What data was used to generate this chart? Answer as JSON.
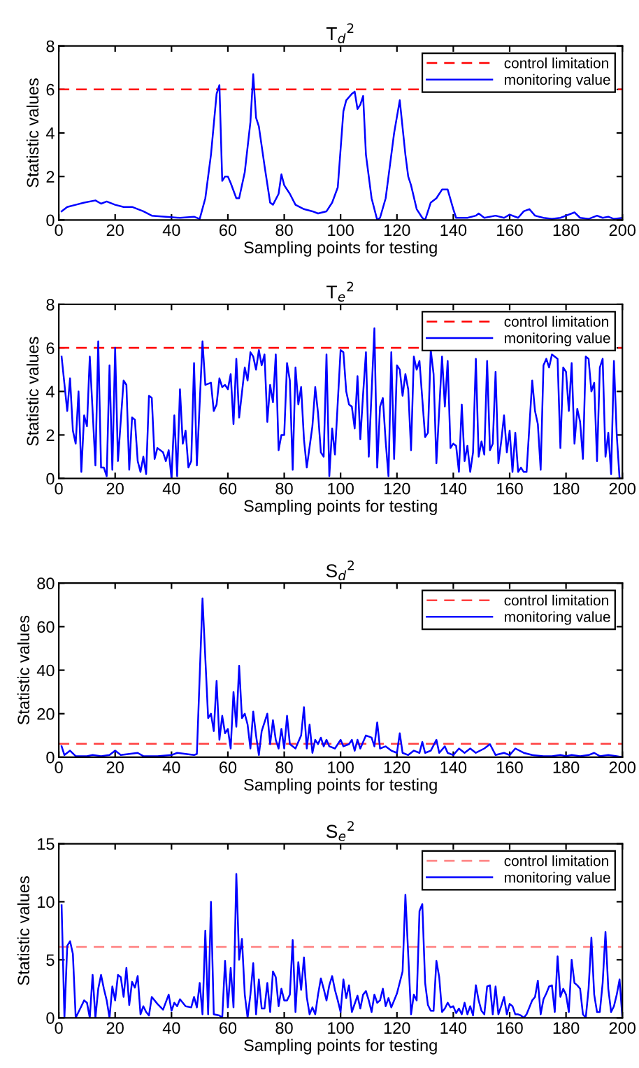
{
  "chart_data": [
    {
      "type": "line",
      "title": "T$_{d}$$^{2}$",
      "xlabel": "Sampling points for testing",
      "ylabel": "Statistic values",
      "xlim": [
        0,
        200
      ],
      "xticks": [
        0,
        20,
        40,
        60,
        80,
        100,
        120,
        140,
        160,
        180,
        200
      ],
      "ylim": [
        0,
        8
      ],
      "yticks": [
        0,
        2,
        4,
        6,
        8
      ],
      "grid": false,
      "legend": "top right",
      "ref_lines": [
        {
          "axis": "y",
          "value": 6,
          "label": "control limitation",
          "color": "#ff0000",
          "line_style": "dashed"
        }
      ],
      "series": [
        {
          "name": "monitoring value",
          "color": "#0000ff",
          "x": [
            1,
            3,
            6,
            9,
            13,
            15,
            17,
            20,
            23,
            26,
            30,
            33,
            38,
            43,
            48,
            50,
            52,
            54,
            56,
            57,
            58,
            59,
            60,
            61,
            63,
            64,
            66,
            68,
            69,
            70,
            71,
            73,
            75,
            76,
            78,
            79,
            80,
            82,
            84,
            87,
            90,
            92,
            95,
            97,
            99,
            101,
            102,
            104,
            105,
            106,
            107,
            108,
            109,
            111,
            113,
            114,
            116,
            119,
            121,
            123,
            124,
            125,
            127,
            129,
            130,
            132,
            134,
            136,
            138,
            140,
            141,
            145,
            148,
            149,
            151,
            155,
            158,
            160,
            163,
            165,
            167,
            169,
            172,
            175,
            178,
            180,
            183,
            185,
            188,
            191,
            193,
            195,
            197,
            200
          ],
          "values": [
            0.4,
            0.6,
            0.7,
            0.8,
            0.9,
            0.75,
            0.85,
            0.7,
            0.6,
            0.6,
            0.4,
            0.2,
            0.15,
            0.1,
            0.15,
            0.05,
            1.0,
            3.0,
            5.8,
            6.2,
            1.8,
            2.0,
            2.0,
            1.7,
            1.0,
            1.0,
            2.2,
            4.5,
            6.7,
            4.7,
            4.3,
            2.5,
            0.8,
            0.7,
            1.2,
            2.1,
            1.6,
            1.2,
            0.7,
            0.5,
            0.4,
            0.3,
            0.4,
            0.8,
            1.5,
            5.0,
            5.5,
            5.8,
            5.9,
            5.1,
            5.3,
            5.7,
            3.0,
            1.0,
            0.0,
            0.1,
            1.0,
            4.0,
            5.5,
            3.0,
            2.0,
            1.6,
            0.5,
            0.1,
            0.0,
            0.8,
            1.0,
            1.4,
            1.4,
            0.5,
            0.1,
            0.1,
            0.2,
            0.3,
            0.1,
            0.2,
            0.1,
            0.25,
            0.1,
            0.4,
            0.5,
            0.2,
            0.1,
            0.05,
            0.1,
            0.2,
            0.35,
            0.1,
            0.05,
            0.2,
            0.1,
            0.15,
            0.05,
            0.1
          ]
        }
      ]
    },
    {
      "type": "line",
      "title": "T$_{e}$$^{2}$",
      "xlabel": "Sampling points for testing",
      "ylabel": "Statistic values",
      "xlim": [
        0,
        200
      ],
      "xticks": [
        0,
        20,
        40,
        60,
        80,
        100,
        120,
        140,
        160,
        180,
        200
      ],
      "ylim": [
        0,
        8
      ],
      "yticks": [
        0,
        2,
        4,
        6,
        8
      ],
      "grid": false,
      "legend": "top right",
      "ref_lines": [
        {
          "axis": "y",
          "value": 6,
          "label": "control limitation",
          "color": "#ff0000",
          "line_style": "dashed"
        }
      ],
      "series": [
        {
          "name": "monitoring value",
          "color": "#0000ff",
          "x": [
            1,
            3,
            4,
            5,
            6,
            7,
            8,
            9,
            10,
            11,
            13,
            14,
            15,
            16,
            17,
            18,
            19,
            20,
            21,
            23,
            24,
            25,
            26,
            27,
            28,
            29,
            30,
            31,
            32,
            33,
            34,
            35,
            37,
            38,
            39,
            40,
            41,
            42,
            43,
            44,
            45,
            46,
            47,
            48,
            49,
            51,
            52,
            54,
            55,
            56,
            57,
            58,
            59,
            60,
            61,
            62,
            63,
            64,
            66,
            67,
            68,
            69,
            70,
            71,
            72,
            73,
            74,
            75,
            76,
            77,
            78,
            79,
            80,
            81,
            82,
            83,
            84,
            85,
            86,
            87,
            88,
            90,
            91,
            92,
            93,
            94,
            95,
            96,
            97,
            98,
            100,
            101,
            102,
            103,
            104,
            105,
            106,
            107,
            108,
            109,
            110,
            112,
            113,
            114,
            115,
            116,
            117,
            118,
            119,
            120,
            121,
            122,
            123,
            124,
            125,
            126,
            127,
            128,
            130,
            131,
            132,
            133,
            134,
            136,
            137,
            138,
            139,
            140,
            141,
            142,
            143,
            144,
            145,
            146,
            147,
            148,
            149,
            150,
            151,
            152,
            153,
            154,
            155,
            156,
            157,
            158,
            159,
            160,
            161,
            162,
            163,
            164,
            165,
            166,
            168,
            169,
            170,
            171,
            172,
            173,
            174,
            175,
            177,
            178,
            179,
            180,
            181,
            182,
            183,
            184,
            185,
            186,
            187,
            188,
            189,
            190,
            191,
            192,
            193,
            194,
            195,
            196,
            197,
            198,
            199
          ],
          "values": [
            5.6,
            3.1,
            4.6,
            2.2,
            1.6,
            4.0,
            0.3,
            2.9,
            2.4,
            5.6,
            0.6,
            6.3,
            0.5,
            0.5,
            0.1,
            5.2,
            0.4,
            6.0,
            0.8,
            4.5,
            4.3,
            0.4,
            2.8,
            2.7,
            0.8,
            0.3,
            1.0,
            0.2,
            3.8,
            3.7,
            0.9,
            1.4,
            1.2,
            0.8,
            1.3,
            0.0,
            2.9,
            0.1,
            4.1,
            1.6,
            2.2,
            0.5,
            0.8,
            5.3,
            0.6,
            6.3,
            4.3,
            4.4,
            3.1,
            3.4,
            4.6,
            4.2,
            4.3,
            4.1,
            4.8,
            2.5,
            5.5,
            2.8,
            5.1,
            4.5,
            5.8,
            5.6,
            5.0,
            5.9,
            5.2,
            5.7,
            2.6,
            4.3,
            3.5,
            5.7,
            1.3,
            2.0,
            2.0,
            5.3,
            4.5,
            0.4,
            5.1,
            3.4,
            4.2,
            1.8,
            0.5,
            2.4,
            4.2,
            3.0,
            1.2,
            1.0,
            5.7,
            0.1,
            2.3,
            1.1,
            5.9,
            5.8,
            4.0,
            3.4,
            3.3,
            2.3,
            4.7,
            1.8,
            3.9,
            5.8,
            1.0,
            6.9,
            0.5,
            3.3,
            3.7,
            1.7,
            0.1,
            5.8,
            0.9,
            5.2,
            5.0,
            3.8,
            4.8,
            4.1,
            1.3,
            5.6,
            5.0,
            5.4,
            1.9,
            2.1,
            5.9,
            4.8,
            0.7,
            5.6,
            3.3,
            5.4,
            1.4,
            1.6,
            1.5,
            0.3,
            3.4,
            0.8,
            1.5,
            0.3,
            1.2,
            5.5,
            1.0,
            1.7,
            1.1,
            5.4,
            1.3,
            1.6,
            4.9,
            0.7,
            1.7,
            2.9,
            1.2,
            2.2,
            0.3,
            2.1,
            0.3,
            0.5,
            0.3,
            0.3,
            4.5,
            3.1,
            2.5,
            0.4,
            5.2,
            5.5,
            5.1,
            5.7,
            5.5,
            1.4,
            5.1,
            4.9,
            3.1,
            5.3,
            1.6,
            3.2,
            2.6,
            0.9,
            5.6,
            5.5,
            4.0,
            4.4,
            0.8,
            5.1,
            5.5,
            1.0,
            2.1,
            0.2,
            5.4,
            2.0,
            0.0
          ]
        }
      ]
    },
    {
      "type": "line",
      "title": "S$_{d}$$^{2}$",
      "xlabel": "Sampling points for testing",
      "ylabel": "Statistic values",
      "xlim": [
        0,
        200
      ],
      "xticks": [
        0,
        20,
        40,
        60,
        80,
        100,
        120,
        140,
        160,
        180,
        200
      ],
      "ylim": [
        0,
        80
      ],
      "yticks": [
        0,
        20,
        40,
        60,
        80
      ],
      "grid": false,
      "legend": "top right",
      "ref_lines": [
        {
          "axis": "y",
          "value": 6.2,
          "label": "control limitation",
          "color": "#ff4040",
          "line_style": "dashed"
        }
      ],
      "series": [
        {
          "name": "monitoring value",
          "color": "#0000ff",
          "x": [
            1,
            2,
            4,
            6,
            10,
            12,
            15,
            18,
            20,
            22,
            25,
            28,
            30,
            35,
            40,
            42,
            45,
            48,
            49,
            51,
            53,
            54,
            55,
            56,
            57,
            58,
            59,
            60,
            61,
            62,
            63,
            64,
            65,
            66,
            67,
            68,
            69,
            70,
            71,
            72,
            74,
            75,
            76,
            77,
            78,
            79,
            80,
            81,
            82,
            84,
            86,
            87,
            88,
            89,
            90,
            91,
            92,
            93,
            94,
            95,
            96,
            98,
            100,
            101,
            103,
            104,
            105,
            106,
            107,
            109,
            111,
            112,
            113,
            114,
            116,
            118,
            120,
            121,
            122,
            124,
            126,
            128,
            129,
            130,
            132,
            134,
            135,
            137,
            138,
            140,
            142,
            144,
            146,
            148,
            151,
            153,
            155,
            158,
            160,
            162,
            165,
            168,
            172,
            175,
            178,
            180,
            182,
            185,
            188,
            190,
            192,
            195,
            198,
            200
          ],
          "values": [
            5,
            1,
            3,
            0.5,
            0.5,
            1,
            0.5,
            1,
            3,
            1,
            1.5,
            2,
            0.5,
            0.5,
            1,
            2,
            1.5,
            1,
            1.5,
            73,
            18,
            20,
            12,
            35,
            8,
            19,
            11,
            13,
            4,
            30,
            14,
            42,
            18,
            20,
            15,
            4,
            21,
            10,
            1,
            12,
            20,
            6,
            17,
            8,
            4,
            13,
            4,
            19,
            6,
            4,
            10,
            23,
            4,
            15,
            2,
            8,
            6,
            9,
            5,
            8,
            5,
            4,
            8,
            5,
            6,
            8,
            3,
            8,
            4,
            10,
            9,
            5,
            16,
            4,
            5,
            3,
            2,
            11,
            2,
            1,
            3,
            2,
            7,
            2,
            3,
            8,
            2,
            5,
            2,
            1,
            4,
            2,
            4,
            2,
            4,
            6,
            1,
            2,
            1,
            4,
            2,
            1,
            0.5,
            0.5,
            1,
            0.5,
            1,
            0.5,
            1,
            2,
            0.5,
            1,
            0.5,
            0
          ]
        }
      ]
    },
    {
      "type": "line",
      "title": "S$_{e}$$^{2}$",
      "xlabel": "Sampling points for testing",
      "ylabel": "Statistic values",
      "xlim": [
        0,
        200
      ],
      "xticks": [
        0,
        20,
        40,
        60,
        80,
        100,
        120,
        140,
        160,
        180,
        200
      ],
      "ylim": [
        0,
        15
      ],
      "yticks": [
        0,
        5,
        10,
        15
      ],
      "grid": false,
      "legend": "top right",
      "ref_lines": [
        {
          "axis": "y",
          "value": 6.1,
          "label": "control limitation",
          "color": "#ff8080",
          "line_style": "dashed"
        }
      ],
      "series": [
        {
          "name": "monitoring value",
          "color": "#0000ff",
          "x": [
            1,
            2,
            3,
            4,
            5,
            6,
            8,
            9,
            10,
            11,
            12,
            13,
            14,
            15,
            16,
            17,
            18,
            19,
            20,
            21,
            22,
            23,
            24,
            25,
            26,
            27,
            28,
            29,
            30,
            31,
            32,
            33,
            35,
            37,
            39,
            40,
            41,
            42,
            43,
            45,
            47,
            48,
            49,
            50,
            51,
            52,
            53,
            54,
            55,
            57,
            58,
            59,
            60,
            61,
            62,
            63,
            64,
            65,
            66,
            67,
            68,
            69,
            70,
            71,
            72,
            73,
            74,
            75,
            76,
            77,
            78,
            79,
            80,
            81,
            82,
            83,
            84,
            85,
            86,
            87,
            88,
            89,
            90,
            91,
            92,
            93,
            94,
            95,
            96,
            97,
            98,
            99,
            100,
            101,
            102,
            103,
            104,
            106,
            107,
            108,
            109,
            110,
            111,
            112,
            113,
            114,
            115,
            116,
            117,
            118,
            120,
            122,
            123,
            125,
            126,
            127,
            128,
            129,
            130,
            131,
            132,
            133,
            134,
            135,
            136,
            137,
            138,
            139,
            140,
            141,
            142,
            143,
            144,
            145,
            146,
            147,
            148,
            149,
            150,
            151,
            152,
            153,
            154,
            155,
            156,
            157,
            158,
            159,
            160,
            161,
            162,
            163,
            164,
            165,
            166,
            168,
            169,
            170,
            171,
            172,
            173,
            174,
            175,
            176,
            177,
            178,
            179,
            180,
            181,
            182,
            183,
            184,
            185,
            186,
            187,
            188,
            189,
            190,
            191,
            192,
            193,
            194,
            195,
            196,
            197,
            198,
            199,
            200
          ],
          "values": [
            9.7,
            0,
            6.2,
            6.6,
            5.5,
            0,
            1.0,
            1.5,
            1.3,
            0,
            3.7,
            0,
            2.5,
            3.7,
            2.5,
            1.5,
            0,
            2.7,
            1.5,
            3.7,
            3.5,
            1.8,
            4.3,
            1.1,
            3.1,
            2.6,
            3.6,
            0.3,
            1.0,
            0.5,
            0.2,
            1.8,
            1.2,
            0.7,
            2.0,
            0.6,
            1.3,
            1.0,
            1.6,
            1.0,
            0.9,
            1.8,
            0.9,
            3.0,
            0.3,
            7.5,
            0.3,
            10.0,
            0.3,
            0.2,
            0,
            4.9,
            0.9,
            4.3,
            0.9,
            12.4,
            5.0,
            6.8,
            2.0,
            0,
            2.0,
            4.7,
            0.3,
            3.3,
            0.8,
            0.8,
            3.0,
            0.5,
            4.0,
            3.5,
            1.0,
            2.5,
            1.5,
            1.5,
            2.0,
            6.7,
            0.5,
            4.8,
            2.4,
            5.2,
            1.8,
            0.3,
            0.9,
            0.3,
            2.0,
            3.4,
            2.5,
            1.5,
            2.8,
            3.6,
            2.4,
            1.5,
            0.5,
            3.3,
            1.7,
            2.8,
            0.5,
            1.9,
            0.8,
            2.0,
            2.3,
            1.5,
            0.5,
            2.0,
            1.3,
            1.5,
            2.5,
            1.0,
            1.7,
            0.9,
            2.1,
            4.0,
            10.6,
            0.3,
            2.0,
            1.5,
            9.2,
            9.8,
            3.0,
            1.1,
            0.6,
            0.6,
            4.9,
            3.5,
            0.5,
            0.8,
            1.3,
            0.9,
            1.0,
            0.4,
            0.8,
            0.3,
            1.3,
            0.3,
            1.0,
            0.2,
            2.8,
            1.5,
            0.6,
            0.3,
            2.7,
            2.8,
            0.3,
            2.7,
            0.3,
            1.0,
            1.8,
            0.3,
            1.2,
            1.0,
            0.3,
            0.3,
            0.2,
            0.0,
            0.3,
            1.5,
            1.8,
            3.2,
            0.3,
            1.6,
            2.1,
            2.7,
            2.8,
            0.5,
            5.3,
            1.8,
            2.5,
            2.0,
            0.5,
            5.0,
            3.0,
            2.8,
            2.5,
            0.3,
            0.0,
            2.5,
            6.9,
            2.0,
            0.5,
            0.5,
            3.0,
            7.4,
            2.5,
            0.5,
            1.0,
            2.0,
            3.3,
            0
          ]
        }
      ]
    }
  ]
}
